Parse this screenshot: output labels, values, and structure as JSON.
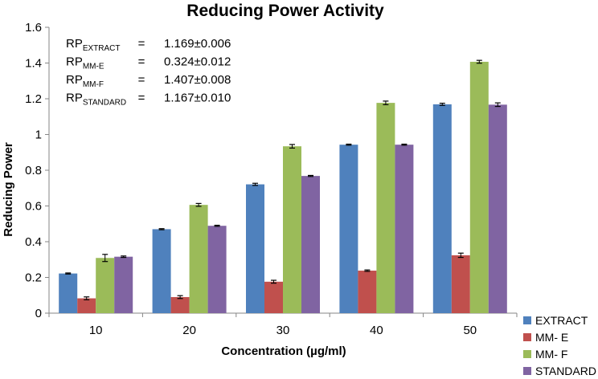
{
  "chart_data": {
    "type": "bar",
    "title": "Reducing Power Activity",
    "xlabel": "Concentration (µg/ml)",
    "ylabel": "Reducing Power",
    "categories": [
      "10",
      "20",
      "30",
      "40",
      "50"
    ],
    "ylim": [
      0,
      1.6
    ],
    "yticks": [
      0,
      0.2,
      0.4,
      0.6,
      0.8,
      1,
      1.2,
      1.4,
      1.6
    ],
    "ytick_labels": [
      "0",
      "0.2",
      "0.4",
      "0.6",
      "0.8",
      "1",
      "1.2",
      "1.4",
      "1.6"
    ],
    "grid": false,
    "legend_position": "bottom-right",
    "series": [
      {
        "name": "EXTRACT",
        "color": "#4f81bd",
        "values": [
          0.222,
          0.47,
          0.721,
          0.943,
          1.169
        ],
        "errors": [
          0.003,
          0.003,
          0.006,
          0.003,
          0.006
        ]
      },
      {
        "name": "MM- E",
        "color": "#c0504d",
        "values": [
          0.083,
          0.09,
          0.176,
          0.238,
          0.324
        ],
        "errors": [
          0.008,
          0.008,
          0.008,
          0.004,
          0.012
        ]
      },
      {
        "name": "MM- F",
        "color": "#9bbb59",
        "values": [
          0.309,
          0.606,
          0.934,
          1.177,
          1.407
        ],
        "errors": [
          0.02,
          0.008,
          0.01,
          0.01,
          0.008
        ]
      },
      {
        "name": "STANDARD",
        "color": "#8064a2",
        "values": [
          0.316,
          0.489,
          0.768,
          0.943,
          1.167
        ],
        "errors": [
          0.004,
          0.003,
          0.003,
          0.003,
          0.01
        ]
      }
    ],
    "annotations": [
      {
        "prefix": "RP",
        "subscript": "EXTRACT",
        "separator": "=",
        "value": "1.169±0.006"
      },
      {
        "prefix": "RP",
        "subscript": "MM-E",
        "separator": "=",
        "value": "0.324±0.012"
      },
      {
        "prefix": "RP",
        "subscript": "MM-F",
        "separator": "=",
        "value": "1.407±0.008"
      },
      {
        "prefix": "RP",
        "subscript": "STANDARD",
        "separator": "=",
        "value": "1.167±0.010"
      }
    ]
  }
}
